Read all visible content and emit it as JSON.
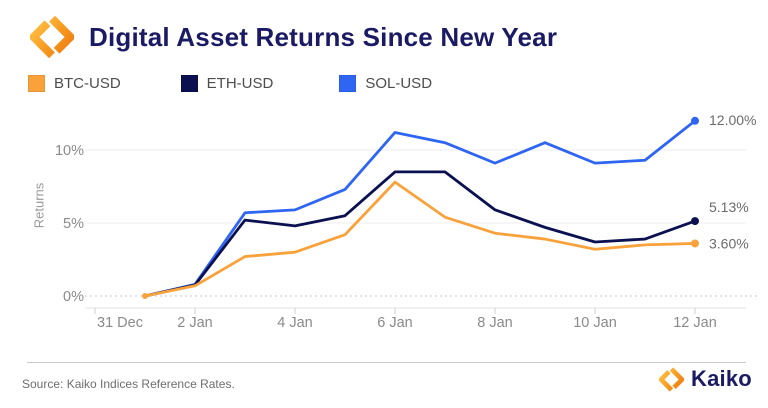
{
  "header": {
    "title": "Digital Asset Returns Since New Year"
  },
  "legend": {
    "items": [
      {
        "label": "BTC-USD",
        "color": "#F9A23B"
      },
      {
        "label": "ETH-USD",
        "color": "#0A1050"
      },
      {
        "label": "SOL-USD",
        "color": "#2E65F3"
      }
    ]
  },
  "chart_data": {
    "type": "line",
    "title": "Digital Asset Returns Since New Year",
    "xlabel": "",
    "ylabel": "Returns",
    "x": [
      "1 Jan",
      "2 Jan",
      "3 Jan",
      "4 Jan",
      "5 Jan",
      "6 Jan",
      "7 Jan",
      "8 Jan",
      "9 Jan",
      "10 Jan",
      "11 Jan",
      "12 Jan"
    ],
    "x_tick_labels": [
      "31 Dec",
      "2 Jan",
      "4 Jan",
      "6 Jan",
      "8 Jan",
      "10 Jan",
      "12 Jan"
    ],
    "y_ticks": [
      {
        "label": "0%",
        "value": 0,
        "dashed": true
      },
      {
        "label": "5%",
        "value": 5,
        "dashed": false
      },
      {
        "label": "10%",
        "value": 10,
        "dashed": false
      }
    ],
    "ylim": [
      -1,
      13
    ],
    "grid": true,
    "legend_position": "top",
    "series": [
      {
        "name": "SOL-USD",
        "color": "#2E65F3",
        "values": [
          0,
          0.8,
          5.7,
          5.9,
          7.3,
          11.2,
          10.5,
          9.1,
          10.5,
          9.1,
          9.3,
          12.0
        ],
        "end_label": "12.00%",
        "end_label_dy": -1
      },
      {
        "name": "ETH-USD",
        "color": "#0A1050",
        "values": [
          0,
          0.75,
          5.2,
          4.8,
          5.5,
          8.5,
          8.5,
          5.9,
          4.7,
          3.7,
          3.9,
          5.13
        ],
        "end_label": "5.13%",
        "end_label_dy": -14
      },
      {
        "name": "BTC-USD",
        "color": "#F9A23B",
        "values": [
          0,
          0.7,
          2.7,
          3.0,
          4.2,
          7.8,
          5.4,
          4.3,
          3.9,
          3.2,
          3.5,
          3.6
        ],
        "end_label": "3.60%",
        "end_label_dy": 0
      }
    ]
  },
  "footer": {
    "source": "Source: Kaiko Indices Reference Rates.",
    "brand": "Kaiko"
  }
}
